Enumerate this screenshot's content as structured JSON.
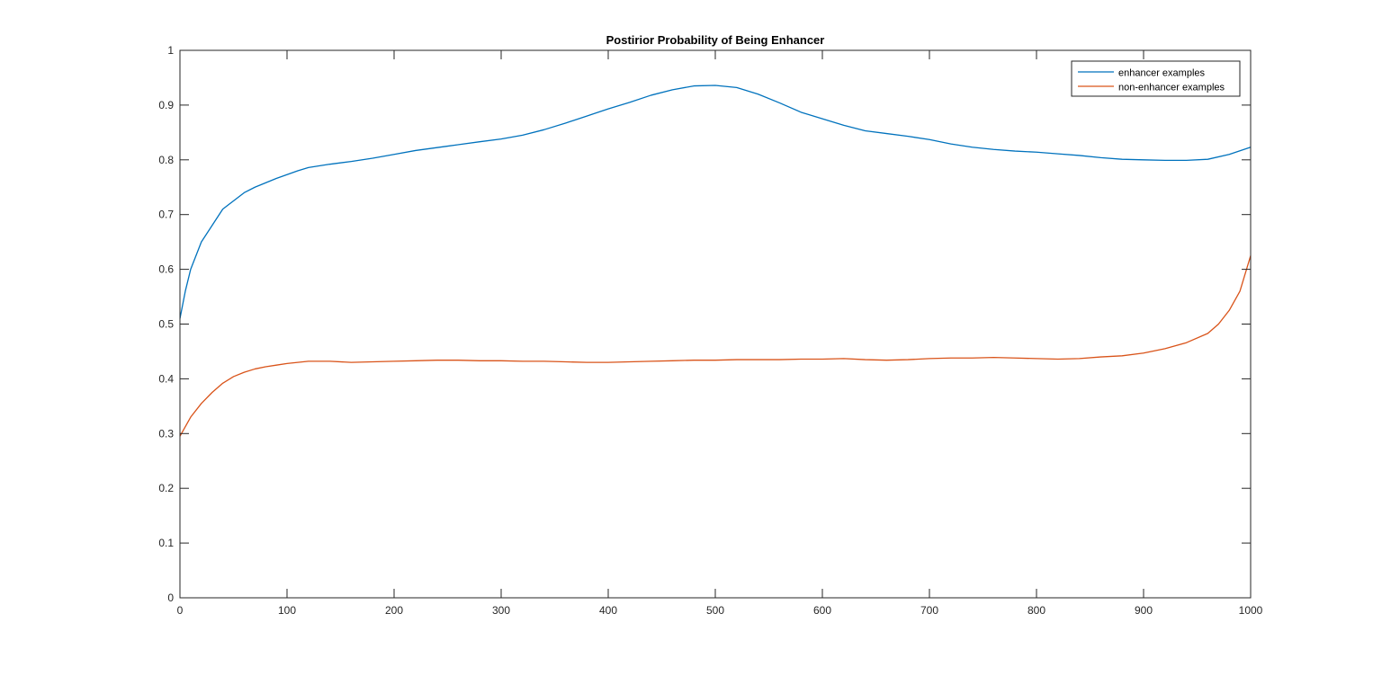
{
  "chart_data": {
    "type": "line",
    "title": "Postirior Probability of Being Enhancer",
    "xlabel": "",
    "ylabel": "",
    "xlim": [
      0,
      1000
    ],
    "ylim": [
      0,
      1
    ],
    "xticks": [
      0,
      100,
      200,
      300,
      400,
      500,
      600,
      700,
      800,
      900,
      1000
    ],
    "yticks": [
      0,
      0.1,
      0.2,
      0.3,
      0.4,
      0.5,
      0.6,
      0.7,
      0.8,
      0.9,
      1
    ],
    "xtick_labels": [
      "0",
      "100",
      "200",
      "300",
      "400",
      "500",
      "600",
      "700",
      "800",
      "900",
      "1000"
    ],
    "ytick_labels": [
      "0",
      "0.1",
      "0.2",
      "0.3",
      "0.4",
      "0.5",
      "0.6",
      "0.7",
      "0.8",
      "0.9",
      "1"
    ],
    "grid": false,
    "legend_position": "top-right",
    "series": [
      {
        "name": "enhancer examples",
        "color": "#0072BD",
        "x": [
          0,
          5,
          10,
          20,
          30,
          40,
          50,
          60,
          70,
          80,
          90,
          100,
          110,
          120,
          140,
          160,
          180,
          200,
          220,
          250,
          280,
          300,
          320,
          340,
          360,
          380,
          400,
          420,
          440,
          460,
          480,
          500,
          520,
          540,
          560,
          580,
          600,
          620,
          640,
          660,
          680,
          700,
          720,
          740,
          760,
          780,
          800,
          820,
          840,
          860,
          880,
          900,
          920,
          940,
          960,
          980,
          1000
        ],
        "y": [
          0.51,
          0.56,
          0.6,
          0.65,
          0.68,
          0.71,
          0.725,
          0.74,
          0.75,
          0.758,
          0.766,
          0.773,
          0.78,
          0.786,
          0.792,
          0.797,
          0.803,
          0.81,
          0.817,
          0.825,
          0.833,
          0.838,
          0.845,
          0.855,
          0.867,
          0.88,
          0.893,
          0.905,
          0.918,
          0.928,
          0.935,
          0.936,
          0.932,
          0.92,
          0.904,
          0.887,
          0.875,
          0.863,
          0.853,
          0.848,
          0.843,
          0.837,
          0.829,
          0.823,
          0.819,
          0.816,
          0.814,
          0.811,
          0.808,
          0.804,
          0.801,
          0.8,
          0.799,
          0.799,
          0.801,
          0.81,
          0.823
        ]
      },
      {
        "name": "non-enhancer examples",
        "color": "#D95319",
        "x": [
          0,
          10,
          20,
          30,
          40,
          50,
          60,
          70,
          80,
          90,
          100,
          120,
          140,
          160,
          180,
          200,
          220,
          240,
          260,
          280,
          300,
          320,
          340,
          360,
          380,
          400,
          420,
          440,
          460,
          480,
          500,
          520,
          540,
          560,
          580,
          600,
          620,
          640,
          660,
          680,
          700,
          720,
          740,
          760,
          780,
          800,
          820,
          840,
          860,
          880,
          900,
          920,
          940,
          960,
          970,
          980,
          990,
          1000
        ],
        "y": [
          0.295,
          0.33,
          0.355,
          0.375,
          0.392,
          0.404,
          0.412,
          0.418,
          0.422,
          0.425,
          0.428,
          0.432,
          0.432,
          0.43,
          0.431,
          0.432,
          0.433,
          0.434,
          0.434,
          0.433,
          0.433,
          0.432,
          0.432,
          0.431,
          0.43,
          0.43,
          0.431,
          0.432,
          0.433,
          0.434,
          0.434,
          0.435,
          0.435,
          0.435,
          0.436,
          0.436,
          0.437,
          0.435,
          0.434,
          0.435,
          0.437,
          0.438,
          0.438,
          0.439,
          0.438,
          0.437,
          0.436,
          0.437,
          0.44,
          0.442,
          0.447,
          0.455,
          0.466,
          0.483,
          0.5,
          0.525,
          0.56,
          0.625
        ]
      }
    ]
  }
}
